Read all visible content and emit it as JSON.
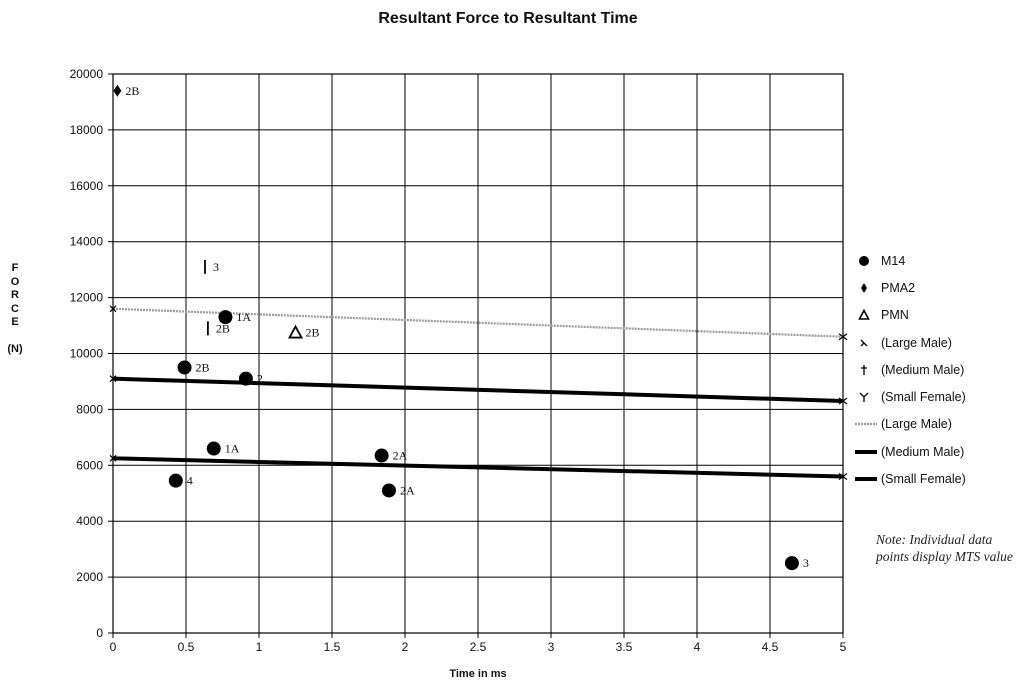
{
  "chart_data": {
    "type": "scatter",
    "title": "Resultant Force to Resultant Time",
    "xlabel": "Time in ms",
    "ylabel": "FORCE",
    "yunit": "(N)",
    "xlim": [
      0,
      5
    ],
    "ylim": [
      0,
      20000
    ],
    "xticks": [
      0,
      0.5,
      1,
      1.5,
      2,
      2.5,
      3,
      3.5,
      4,
      4.5,
      5
    ],
    "xtick_labels": [
      "0",
      "0.5",
      "1",
      "1.5",
      "2",
      "2.5",
      "3",
      "3.5",
      "4",
      "4.5",
      "5"
    ],
    "yticks": [
      0,
      2000,
      4000,
      6000,
      8000,
      10000,
      12000,
      14000,
      16000,
      18000,
      20000
    ],
    "ytick_labels": [
      "0",
      "2000",
      "4000",
      "6000",
      "8000",
      "10000",
      "12000",
      "14000",
      "16000",
      "18000",
      "20000"
    ],
    "grid": true,
    "legend_position": "right",
    "series": [
      {
        "name": "M14",
        "marker": "circle",
        "points": [
          {
            "x": 0.43,
            "y": 5450,
            "label": "4"
          },
          {
            "x": 0.49,
            "y": 9500,
            "label": "2B"
          },
          {
            "x": 0.69,
            "y": 6600,
            "label": "1A"
          },
          {
            "x": 0.77,
            "y": 11300,
            "label": "1A"
          },
          {
            "x": 0.91,
            "y": 9100,
            "label": "2"
          },
          {
            "x": 1.84,
            "y": 6350,
            "label": "2A"
          },
          {
            "x": 1.89,
            "y": 5100,
            "label": "2A"
          },
          {
            "x": 4.65,
            "y": 2500,
            "label": "3"
          }
        ]
      },
      {
        "name": "PMA2",
        "marker": "diamond",
        "points": [
          {
            "x": 0.03,
            "y": 19400,
            "label": "2B"
          }
        ]
      },
      {
        "name": "PMN",
        "marker": "triangle",
        "points": [
          {
            "x": 1.25,
            "y": 10750,
            "label": "2B"
          }
        ]
      },
      {
        "name": "(Large Male)",
        "marker": "x-cross",
        "points": []
      },
      {
        "name": "(Medium Male)",
        "marker": "dash",
        "points": [
          {
            "x": 0.63,
            "y": 13100,
            "label": "3"
          },
          {
            "x": 0.65,
            "y": 10900,
            "label": "2B"
          }
        ]
      },
      {
        "name": "(Small Female)",
        "marker": "y-cross",
        "points": []
      }
    ],
    "lines": [
      {
        "name": "(Large Male)",
        "style": "dotted-gray",
        "x": [
          0,
          5
        ],
        "y": [
          11600,
          10600
        ]
      },
      {
        "name": "(Medium Male)",
        "style": "solid-black",
        "x": [
          0,
          5
        ],
        "y": [
          9100,
          8300
        ]
      },
      {
        "name": "(Small Female)",
        "style": "solid-black",
        "x": [
          0,
          5
        ],
        "y": [
          6250,
          5600
        ]
      }
    ],
    "note": "Note: Individual data points display MTS value"
  },
  "colors": {
    "marker": "#000000",
    "grid": "#000000",
    "large_male_line": "#9a9a9a",
    "regression_line": "#000000"
  }
}
